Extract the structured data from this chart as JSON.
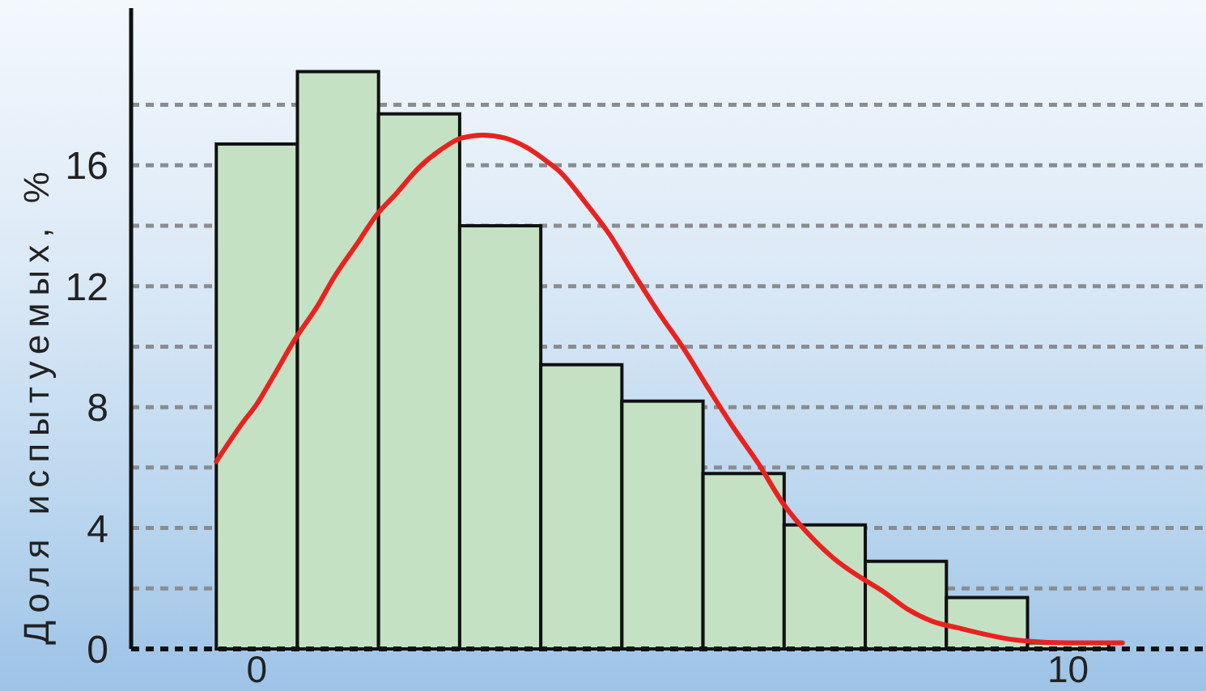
{
  "chart_data": {
    "type": "histogram",
    "ylabel": "Доля испытуемых, %",
    "bins": [
      -0.5,
      0.5,
      1.5,
      2.5,
      3.5,
      4.5,
      5.5,
      6.5,
      7.5,
      8.5,
      9.5,
      10.5
    ],
    "series": [
      {
        "color": "#c4e1c4",
        "values": [
          16.7,
          19.1,
          17.7,
          14.0,
          9.4,
          8.2,
          5.8,
          4.1,
          2.9,
          1.7,
          0.2
        ]
      },
      {
        "type": "line",
        "color": "#e8231f",
        "x": [
          -0.5,
          -0.17,
          0.0,
          0.2,
          0.46,
          0.76,
          0.93,
          1.26,
          1.46,
          1.73,
          1.99,
          2.26,
          2.52,
          2.79,
          3.06,
          3.32,
          3.59,
          3.73,
          4.04,
          4.35,
          4.65,
          4.96,
          5.27,
          5.57,
          5.88,
          6.19,
          6.49,
          6.8,
          7.11,
          7.42,
          7.72,
          8.03,
          8.34,
          8.64,
          8.95,
          9.34,
          10.0,
          10.67
        ],
        "values": [
          6.2,
          7.5,
          8.1,
          9.0,
          10.2,
          11.4,
          12.2,
          13.5,
          14.3,
          15.1,
          15.9,
          16.5,
          16.9,
          17.0,
          16.9,
          16.6,
          16.1,
          15.8,
          14.8,
          13.7,
          12.4,
          11.1,
          9.9,
          8.6,
          7.3,
          6.1,
          4.8,
          3.8,
          3.0,
          2.4,
          1.9,
          1.3,
          0.9,
          0.7,
          0.5,
          0.3,
          0.2,
          0.2
        ]
      }
    ],
    "xlim": [
      -1.55,
      11.7
    ],
    "ylim": [
      0,
      21.2
    ],
    "xticks": [
      0,
      10
    ],
    "yticks": [
      0,
      {
        "value": 2,
        "label": null
      },
      4,
      {
        "value": 6,
        "label": null
      },
      8,
      {
        "value": 10,
        "label": null
      },
      12,
      {
        "value": 14,
        "label": null
      },
      16,
      {
        "value": 18,
        "label": null
      }
    ],
    "grid": "y",
    "marker": "none",
    "line_style": "solid"
  }
}
